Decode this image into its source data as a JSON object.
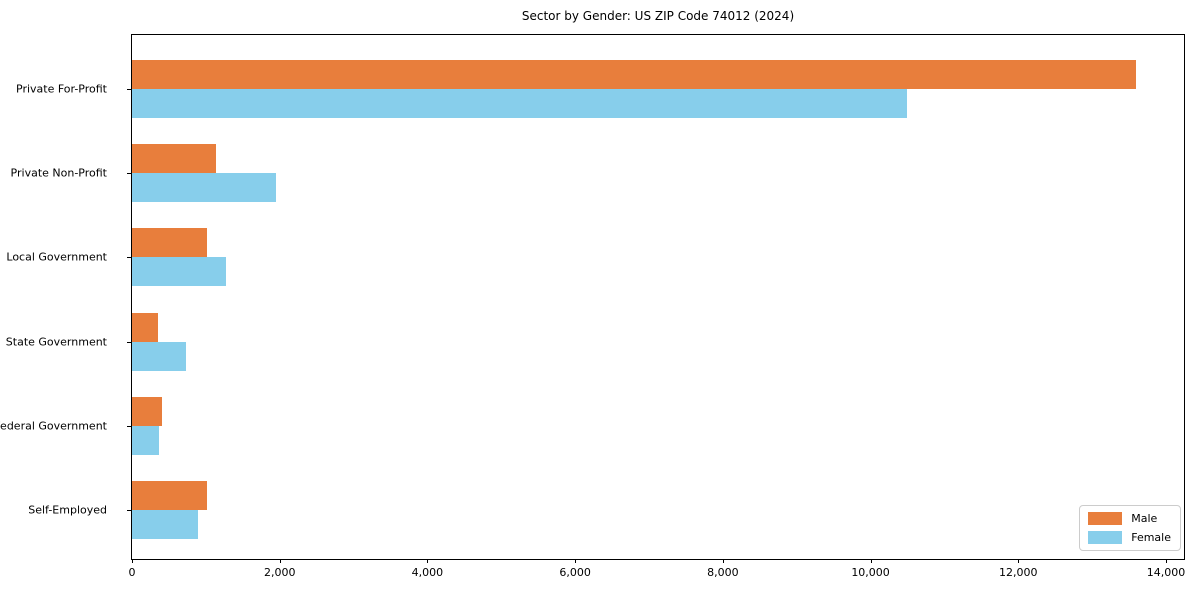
{
  "chart_data": {
    "type": "bar",
    "orientation": "horizontal",
    "title": "Sector by Gender: US ZIP Code 74012 (2024)",
    "categories": [
      "Private For-Profit",
      "Private Non-Profit",
      "Local Government",
      "State Government",
      "Federal Government",
      "Self-Employed"
    ],
    "series": [
      {
        "name": "Male",
        "color": "#E87E3C",
        "values": [
          13600,
          1140,
          1020,
          350,
          410,
          1020
        ]
      },
      {
        "name": "Female",
        "color": "#87CEEB",
        "values": [
          10490,
          1950,
          1270,
          730,
          370,
          890
        ]
      }
    ],
    "xlabel": "",
    "ylabel": "",
    "xlim": [
      0,
      14000
    ],
    "x_ticks": [
      0,
      2000,
      4000,
      6000,
      8000,
      10000,
      12000,
      14000
    ],
    "x_tick_labels": [
      "0",
      "2,000",
      "4,000",
      "6,000",
      "8,000",
      "10,000",
      "12,000",
      "14,000"
    ],
    "grid": false,
    "legend_position": "lower right",
    "spine_color": "#000000",
    "background_color": "#ffffff"
  },
  "layout_hints": {
    "note": "values estimated from pixel measurement of bar ends against axis ticks"
  }
}
